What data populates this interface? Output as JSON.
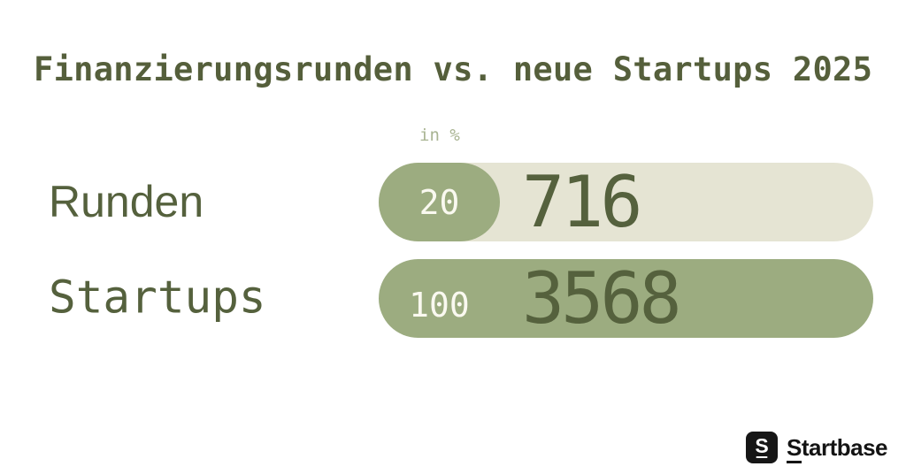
{
  "title": "Finanzierungsrunden vs. neue Startups 2025",
  "unit_label": "in %",
  "rows": [
    {
      "label": "Runden",
      "percent": "20",
      "value": "716"
    },
    {
      "label": "Startups",
      "percent": "100",
      "value": "3568"
    }
  ],
  "logo": {
    "mark": "S",
    "initial": "S",
    "rest": "tartbase"
  },
  "colors": {
    "background": "#FFFFFF",
    "olive_text": "#55613D",
    "title_text": "#555F3B",
    "sage_fill": "#9CAC80",
    "beige_track": "#E5E4D3",
    "unit_text": "#A9B492",
    "pill_text": "#FAF9F0",
    "logo_black": "#161616"
  },
  "chart_data": {
    "type": "bar",
    "orientation": "horizontal",
    "title": "Finanzierungsrunden vs. neue Startups 2025",
    "unit": "in %",
    "categories": [
      "Runden",
      "Startups"
    ],
    "values": [
      716,
      3568
    ],
    "percentages": [
      20,
      100
    ],
    "xlim": [
      0,
      100
    ],
    "legend": false,
    "grid": false
  }
}
